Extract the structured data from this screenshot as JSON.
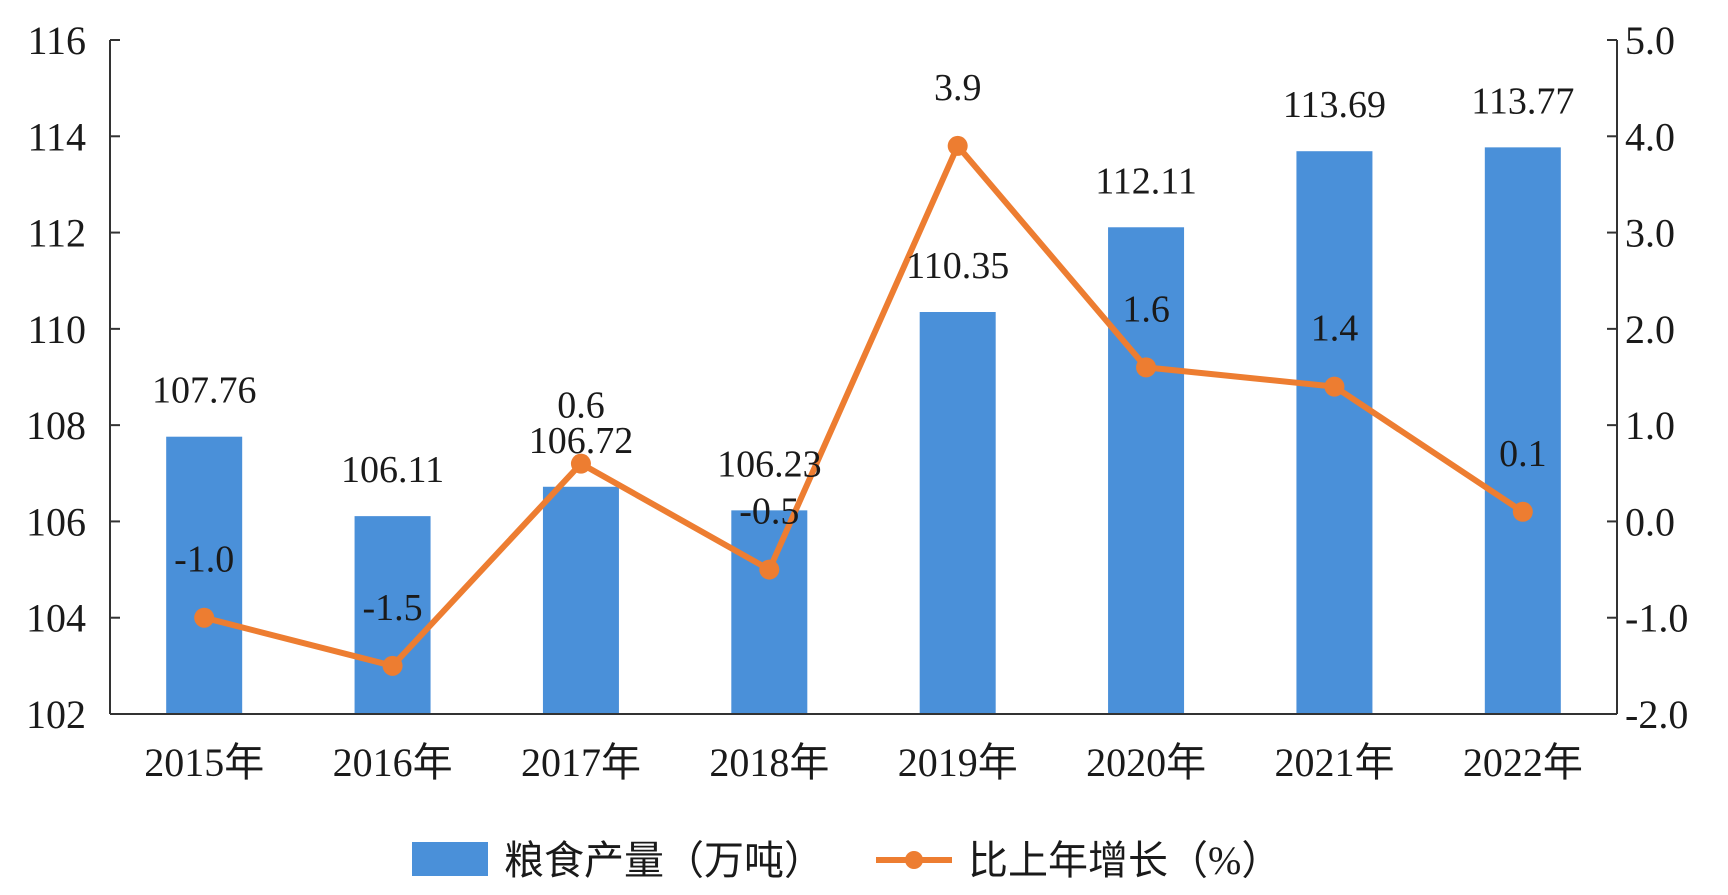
{
  "chart_data": {
    "type": "bar+line",
    "categories": [
      "2015年",
      "2016年",
      "2017年",
      "2018年",
      "2019年",
      "2020年",
      "2021年",
      "2022年"
    ],
    "series": [
      {
        "name": "粮食产量（万吨）",
        "type": "bar",
        "axis": "left",
        "color": "#4a90d9",
        "values": [
          107.76,
          106.11,
          106.72,
          106.23,
          110.35,
          112.11,
          113.69,
          113.77
        ],
        "labels": [
          "107.76",
          "106.11",
          "106.72",
          "106.23",
          "110.35",
          "112.11",
          "113.69",
          "113.77"
        ]
      },
      {
        "name": "比上年增长（%）",
        "type": "line",
        "axis": "right",
        "color": "#ed7d31",
        "values": [
          -1.0,
          -1.5,
          0.6,
          -0.5,
          3.9,
          1.6,
          1.4,
          0.1
        ],
        "labels": [
          "-1.0",
          "-1.5",
          "0.6",
          "-0.5",
          "3.9",
          "1.6",
          "1.4",
          "0.1"
        ]
      }
    ],
    "left_axis": {
      "ylim": [
        102,
        116
      ],
      "ticks": [
        "102",
        "104",
        "106",
        "108",
        "110",
        "112",
        "114",
        "116"
      ]
    },
    "right_axis": {
      "ylim": [
        -2.0,
        5.0
      ],
      "ticks": [
        "-2.0",
        "-1.0",
        "0.0",
        "1.0",
        "2.0",
        "3.0",
        "4.0",
        "5.0"
      ]
    },
    "grid": false,
    "legend": "bottom-center"
  }
}
